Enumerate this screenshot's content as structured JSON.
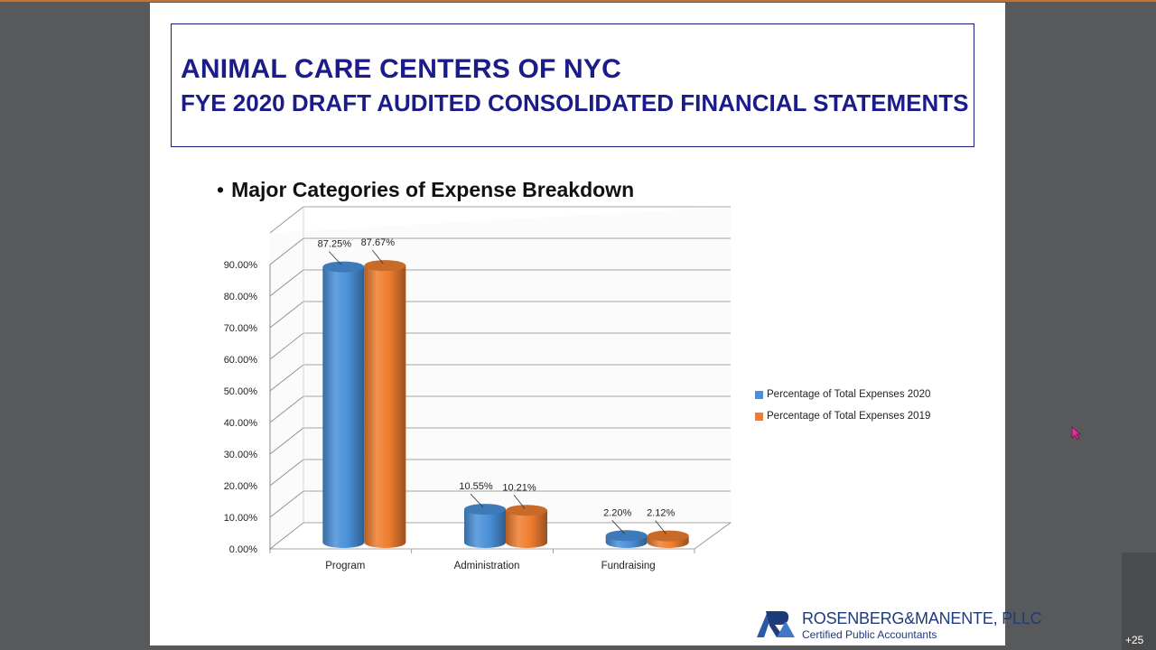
{
  "slide": {
    "title_line1": "ANIMAL CARE CENTERS OF NYC",
    "title_line2": "FYE 2020 DRAFT AUDITED CONSOLIDATED FINANCIAL STATEMENTS",
    "bullet_marker": "•",
    "bullet_text": "Major Categories of Expense Breakdown"
  },
  "chart_data": {
    "type": "bar",
    "style": "3d-cylinder",
    "categories": [
      "Program",
      "Administration",
      "Fundraising"
    ],
    "series": [
      {
        "name": "Percentage of Total Expenses 2020",
        "values": [
          87.25,
          10.55,
          2.2
        ],
        "labels": [
          "87.25%",
          "10.55%",
          "2.20%"
        ],
        "color": "#4a90d9"
      },
      {
        "name": "Percentage of Total Expenses 2019",
        "values": [
          87.67,
          10.21,
          2.12
        ],
        "labels": [
          "87.67%",
          "10.21%",
          "2.12%"
        ],
        "color": "#ee7d2f"
      }
    ],
    "yticks": [
      "0.00%",
      "10.00%",
      "20.00%",
      "30.00%",
      "40.00%",
      "50.00%",
      "60.00%",
      "70.00%",
      "80.00%",
      "90.00%"
    ],
    "ylim": [
      0,
      100
    ],
    "grid": true,
    "legend_position": "right"
  },
  "logo": {
    "name": "ROSENBERG&MANENTE, PLLC",
    "subtitle": "Certified Public Accountants"
  },
  "overlay": {
    "participant_count": "+25"
  }
}
